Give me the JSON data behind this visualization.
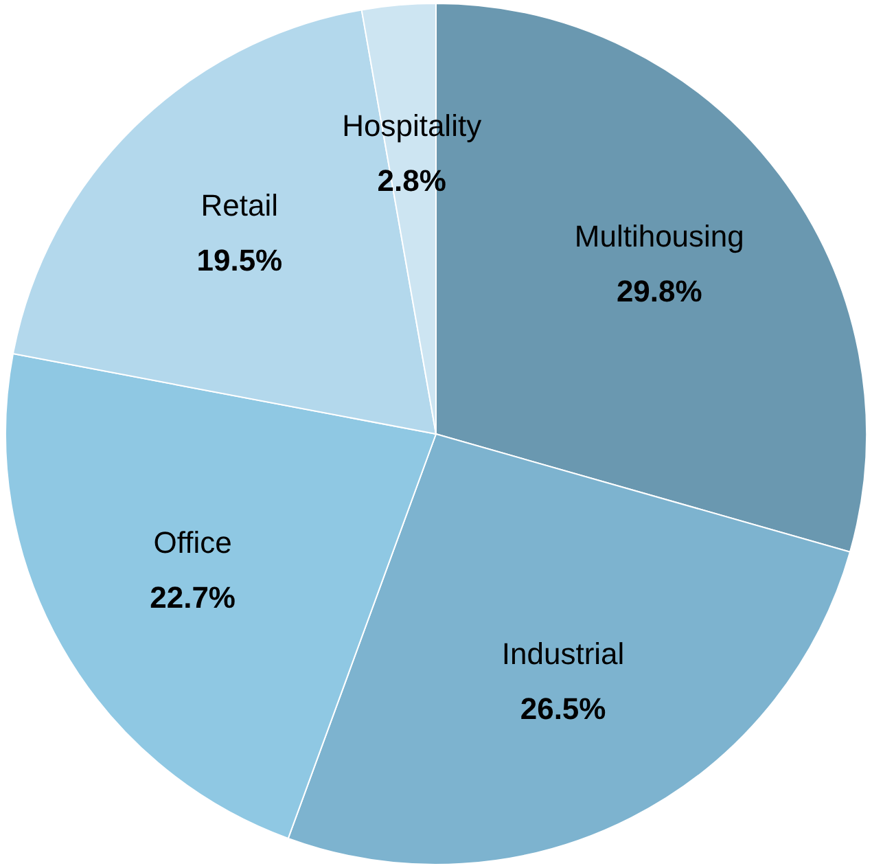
{
  "chart_data": {
    "type": "pie",
    "categories": [
      "Multihousing",
      "Industrial",
      "Office",
      "Retail",
      "Hospitality"
    ],
    "values": [
      29.8,
      26.5,
      22.7,
      19.5,
      2.8
    ],
    "value_labels": [
      "29.8%",
      "26.5%",
      "22.7%",
      "19.5%",
      "2.8%"
    ],
    "colors": [
      "#6a98b0",
      "#7db3cf",
      "#8fc8e3",
      "#b3d8ec",
      "#cde5f2"
    ],
    "legend": false
  }
}
